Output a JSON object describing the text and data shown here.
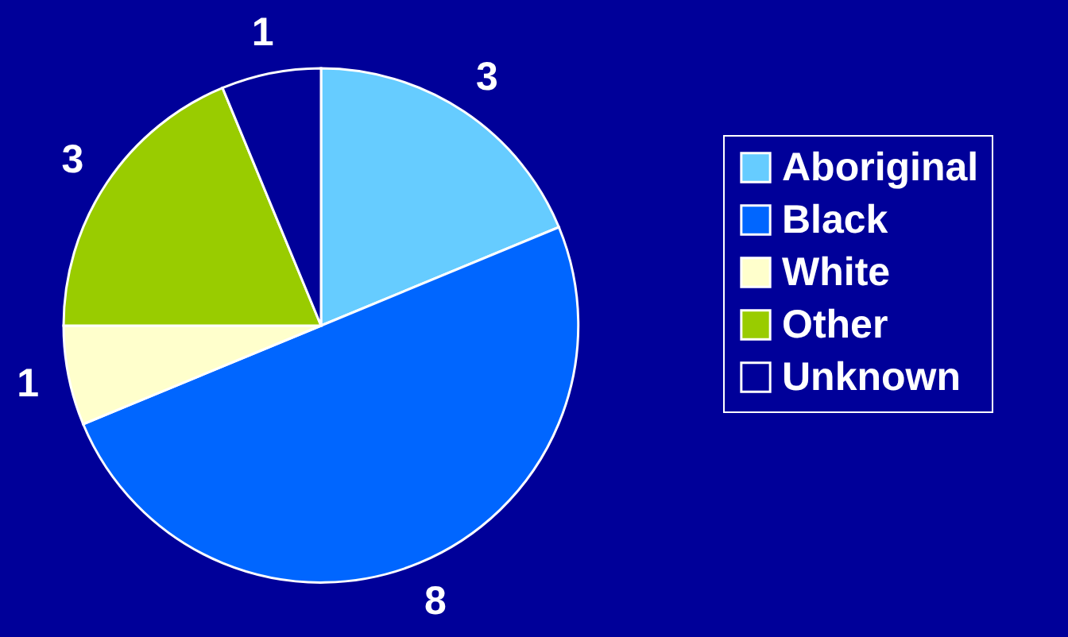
{
  "chart_data": {
    "type": "pie",
    "categories": [
      "Aboriginal",
      "Black",
      "White",
      "Other",
      "Unknown"
    ],
    "values": [
      3,
      8,
      1,
      3,
      1
    ],
    "colors": [
      "#66ccff",
      "#0066ff",
      "#ffffcc",
      "#99cc00",
      "#000099"
    ],
    "data_labels": true,
    "legend": "right"
  }
}
